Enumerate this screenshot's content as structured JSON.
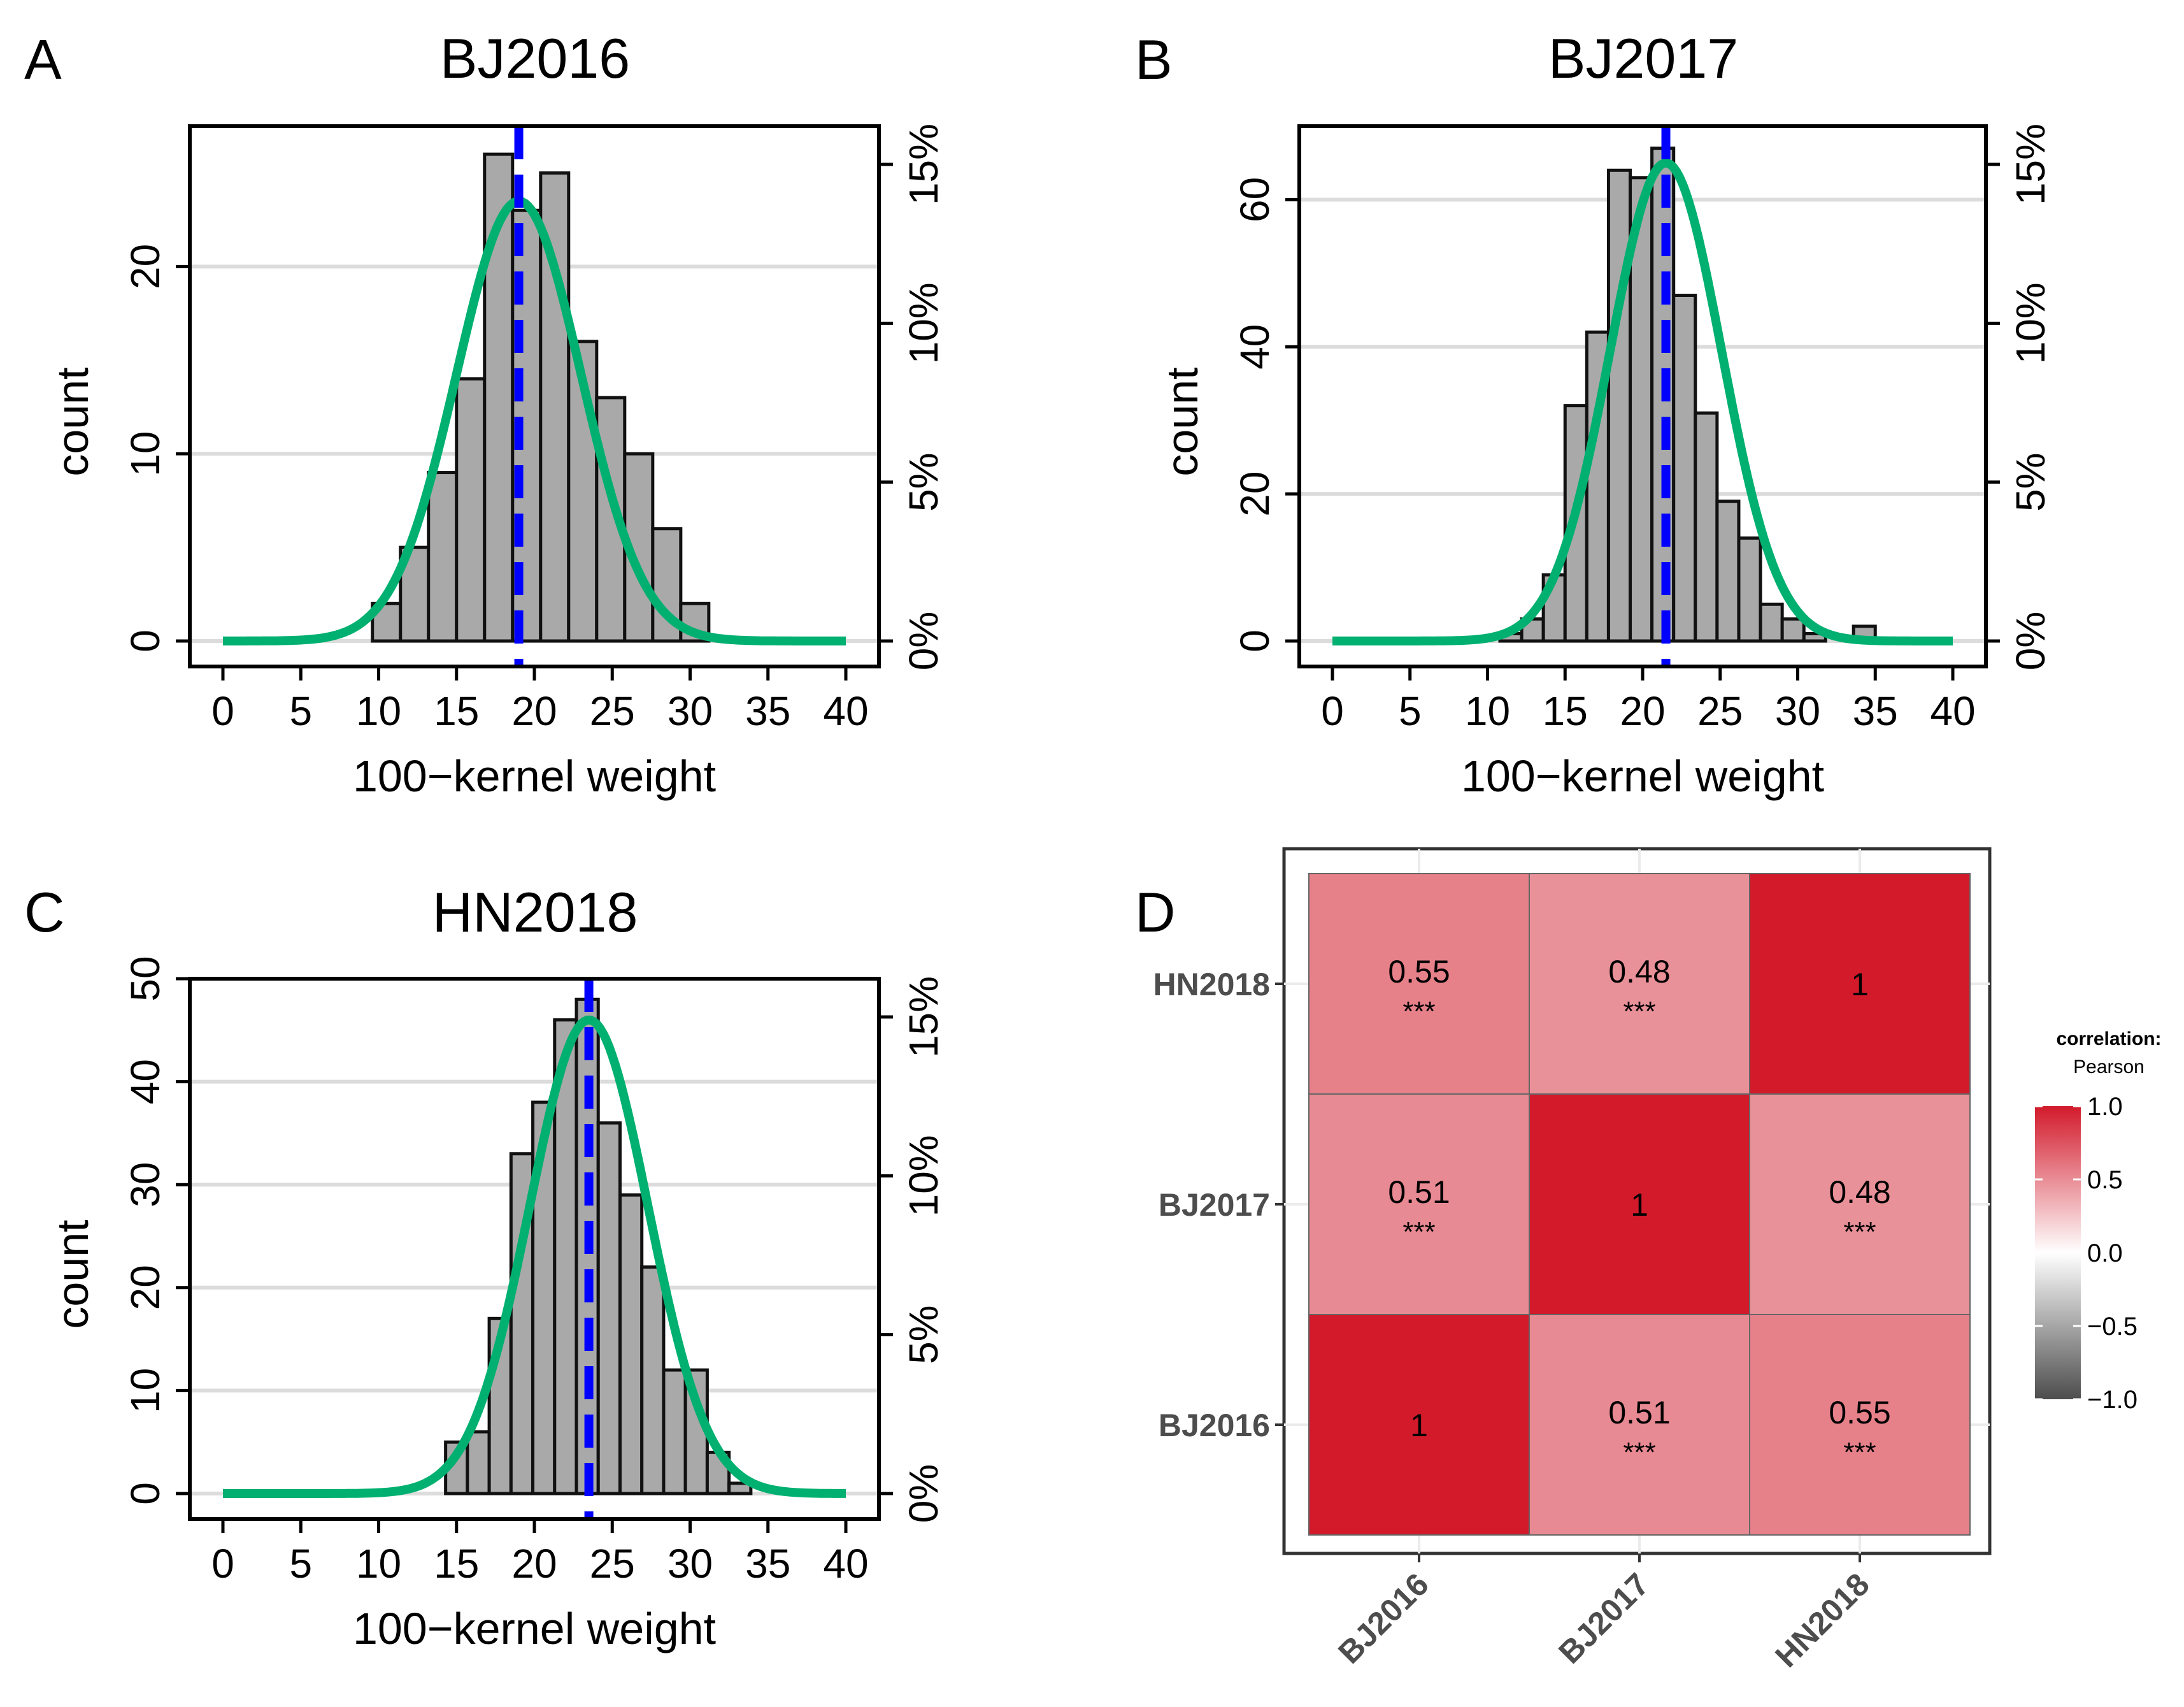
{
  "chart_data": [
    {
      "type": "bar",
      "panel": "A",
      "title": "BJ2016",
      "xlabel": "100−kernel weight",
      "ylabel": "count",
      "xlim": [
        0,
        40
      ],
      "x_ticks": [
        0,
        5,
        10,
        15,
        20,
        25,
        30,
        35,
        40
      ],
      "ylim": [
        0,
        27.5
      ],
      "y_ticks": [
        0,
        10,
        20
      ],
      "y2_ticks": [
        "0%",
        "5%",
        "10%",
        "15%"
      ],
      "y2_values": [
        0,
        5,
        10,
        15
      ],
      "bin_width": 1.8,
      "bins": [
        {
          "start": 9.6,
          "count": 2
        },
        {
          "start": 11.4,
          "count": 5
        },
        {
          "start": 13.2,
          "count": 9
        },
        {
          "start": 15.0,
          "count": 14
        },
        {
          "start": 16.8,
          "count": 26
        },
        {
          "start": 18.6,
          "count": 23
        },
        {
          "start": 20.4,
          "count": 25
        },
        {
          "start": 22.2,
          "count": 16
        },
        {
          "start": 24.0,
          "count": 13
        },
        {
          "start": 25.8,
          "count": 10
        },
        {
          "start": 27.6,
          "count": 6
        },
        {
          "start": 29.4,
          "count": 2
        }
      ],
      "mean": 19.0,
      "normal_fit": {
        "mean": 19.0,
        "sd": 4.0,
        "peak_count": 23.5
      },
      "mean_line_color": "#0000ff",
      "curve_color": "#00b070",
      "bar_color": "#a9a9a9"
    },
    {
      "type": "bar",
      "panel": "B",
      "title": "BJ2017",
      "xlabel": "100−kernel weight",
      "ylabel": "count",
      "xlim": [
        0,
        40
      ],
      "x_ticks": [
        0,
        5,
        10,
        15,
        20,
        25,
        30,
        35,
        40
      ],
      "ylim": [
        0,
        70
      ],
      "y_ticks": [
        0,
        20,
        40,
        60
      ],
      "y2_ticks": [
        "0%",
        "5%",
        "10%",
        "15%"
      ],
      "y2_values": [
        0,
        5,
        10,
        15
      ],
      "bin_width": 1.4,
      "bins": [
        {
          "start": 10.8,
          "count": 1
        },
        {
          "start": 12.2,
          "count": 3
        },
        {
          "start": 13.6,
          "count": 9
        },
        {
          "start": 15.0,
          "count": 32
        },
        {
          "start": 16.4,
          "count": 42
        },
        {
          "start": 17.8,
          "count": 64
        },
        {
          "start": 19.2,
          "count": 63
        },
        {
          "start": 20.6,
          "count": 67
        },
        {
          "start": 22.0,
          "count": 47
        },
        {
          "start": 23.4,
          "count": 31
        },
        {
          "start": 24.8,
          "count": 19
        },
        {
          "start": 26.2,
          "count": 14
        },
        {
          "start": 27.6,
          "count": 5
        },
        {
          "start": 29.0,
          "count": 3
        },
        {
          "start": 30.4,
          "count": 1
        },
        {
          "start": 33.6,
          "count": 2
        }
      ],
      "mean": 21.5,
      "normal_fit": {
        "mean": 21.5,
        "sd": 3.6,
        "peak_count": 65
      },
      "mean_line_color": "#0000ff",
      "curve_color": "#00b070",
      "bar_color": "#a9a9a9"
    },
    {
      "type": "bar",
      "panel": "C",
      "title": "HN2018",
      "xlabel": "100−kernel weight",
      "ylabel": "count",
      "xlim": [
        0,
        40
      ],
      "x_ticks": [
        0,
        5,
        10,
        15,
        20,
        25,
        30,
        35,
        40
      ],
      "ylim": [
        0,
        50
      ],
      "y_ticks": [
        0,
        10,
        20,
        30,
        40,
        50
      ],
      "y2_ticks": [
        "0%",
        "5%",
        "10%",
        "15%"
      ],
      "y2_values": [
        0,
        5,
        10,
        15
      ],
      "bin_width": 1.4,
      "bins": [
        {
          "start": 14.3,
          "count": 5
        },
        {
          "start": 15.7,
          "count": 6
        },
        {
          "start": 17.1,
          "count": 17
        },
        {
          "start": 18.5,
          "count": 33
        },
        {
          "start": 19.9,
          "count": 38
        },
        {
          "start": 21.3,
          "count": 46
        },
        {
          "start": 22.7,
          "count": 48
        },
        {
          "start": 24.1,
          "count": 36
        },
        {
          "start": 25.5,
          "count": 29
        },
        {
          "start": 26.9,
          "count": 22
        },
        {
          "start": 28.3,
          "count": 12
        },
        {
          "start": 29.7,
          "count": 12
        },
        {
          "start": 31.1,
          "count": 4
        },
        {
          "start": 32.5,
          "count": 1
        }
      ],
      "mean": 23.5,
      "normal_fit": {
        "mean": 23.5,
        "sd": 3.8,
        "peak_count": 46
      },
      "mean_line_color": "#0000ff",
      "curve_color": "#00b070",
      "bar_color": "#a9a9a9"
    },
    {
      "type": "heatmap",
      "panel": "D",
      "x_categories": [
        "BJ2016",
        "BJ2017",
        "HN2018"
      ],
      "y_categories": [
        "BJ2016",
        "BJ2017",
        "HN2018"
      ],
      "cells": [
        {
          "x": "BJ2016",
          "y": "HN2018",
          "value": 0.55,
          "label": "0.55",
          "sig": "***"
        },
        {
          "x": "BJ2017",
          "y": "HN2018",
          "value": 0.48,
          "label": "0.48",
          "sig": "***"
        },
        {
          "x": "HN2018",
          "y": "HN2018",
          "value": 1,
          "label": "1",
          "sig": ""
        },
        {
          "x": "BJ2016",
          "y": "BJ2017",
          "value": 0.51,
          "label": "0.51",
          "sig": "***"
        },
        {
          "x": "BJ2017",
          "y": "BJ2017",
          "value": 1,
          "label": "1",
          "sig": ""
        },
        {
          "x": "HN2018",
          "y": "BJ2017",
          "value": 0.48,
          "label": "0.48",
          "sig": "***"
        },
        {
          "x": "BJ2016",
          "y": "BJ2016",
          "value": 1,
          "label": "1",
          "sig": ""
        },
        {
          "x": "BJ2017",
          "y": "BJ2016",
          "value": 0.51,
          "label": "0.51",
          "sig": "***"
        },
        {
          "x": "HN2018",
          "y": "BJ2016",
          "value": 0.55,
          "label": "0.55",
          "sig": "***"
        }
      ],
      "legend": {
        "title": "correlation:",
        "subtitle": "Pearson",
        "ticks": [
          "1.0",
          "0.5",
          "0.0",
          "−0.5",
          "−1.0"
        ],
        "tick_values": [
          1.0,
          0.5,
          0.0,
          -0.5,
          -1.0
        ],
        "color_high": "#d21a2b",
        "color_mid": "#ffffff",
        "color_low": "#4d4d4d",
        "placement": "right"
      }
    }
  ]
}
